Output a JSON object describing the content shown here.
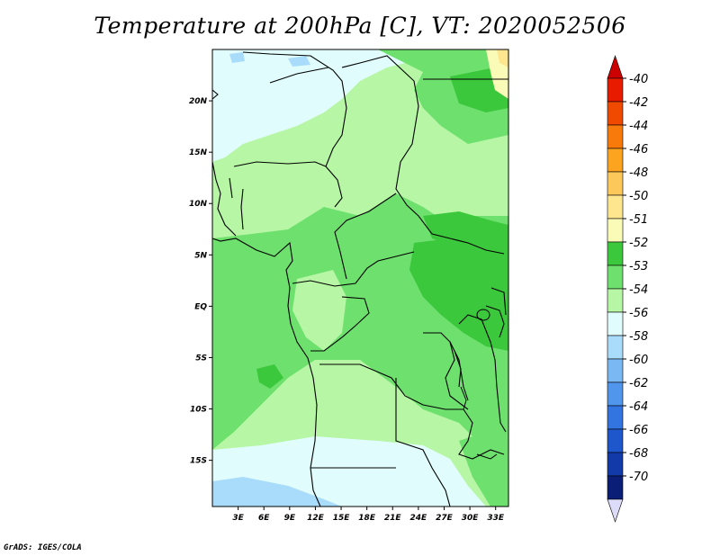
{
  "title": "Temperature at 200hPa [C], VT: 2020052506",
  "credit": "GrADS: IGES/COLA",
  "map": {
    "lon_range": [
      0,
      34.5
    ],
    "lat_range": [
      -19.5,
      25
    ],
    "lon_ticks": [
      {
        "value": 3,
        "label": "3E"
      },
      {
        "value": 6,
        "label": "6E"
      },
      {
        "value": 9,
        "label": "9E"
      },
      {
        "value": 12,
        "label": "12E"
      },
      {
        "value": 15,
        "label": "15E"
      },
      {
        "value": 18,
        "label": "18E"
      },
      {
        "value": 21,
        "label": "21E"
      },
      {
        "value": 24,
        "label": "24E"
      },
      {
        "value": 27,
        "label": "27E"
      },
      {
        "value": 30,
        "label": "30E"
      },
      {
        "value": 33,
        "label": "33E"
      }
    ],
    "lat_ticks": [
      {
        "value": 20,
        "label": "20N"
      },
      {
        "value": 15,
        "label": "15N"
      },
      {
        "value": 10,
        "label": "10N"
      },
      {
        "value": 5,
        "label": "5N"
      },
      {
        "value": 0,
        "label": "EQ"
      },
      {
        "value": -5,
        "label": "5S"
      },
      {
        "value": -10,
        "label": "10S"
      },
      {
        "value": -15,
        "label": "15S"
      }
    ]
  },
  "colorbar": {
    "levels": [
      {
        "label": "-40",
        "color": "#e81a00"
      },
      {
        "label": "-42",
        "color": "#f04a00"
      },
      {
        "label": "-44",
        "color": "#f87a0a"
      },
      {
        "label": "-46",
        "color": "#fca420"
      },
      {
        "label": "-48",
        "color": "#fcc85a"
      },
      {
        "label": "-50",
        "color": "#fde68e"
      },
      {
        "label": "-51",
        "color": "#fbfbb8"
      },
      {
        "label": "-52",
        "color": "#3cc83c"
      },
      {
        "label": "-53",
        "color": "#6ee06e"
      },
      {
        "label": "-54",
        "color": "#b6f6a4"
      },
      {
        "label": "-56",
        "color": "#e0fcfc"
      },
      {
        "label": "-58",
        "color": "#a8dcfa"
      },
      {
        "label": "-60",
        "color": "#7ab8f4"
      },
      {
        "label": "-62",
        "color": "#4f96ec"
      },
      {
        "label": "-64",
        "color": "#3274e0"
      },
      {
        "label": "-66",
        "color": "#1e56cc"
      },
      {
        "label": "-68",
        "color": "#123aa8"
      },
      {
        "label": "-70",
        "color": "#0a1e78"
      }
    ],
    "top_cap_color": "#cc0000",
    "bottom_cap_color": "#dcdcf8"
  }
}
